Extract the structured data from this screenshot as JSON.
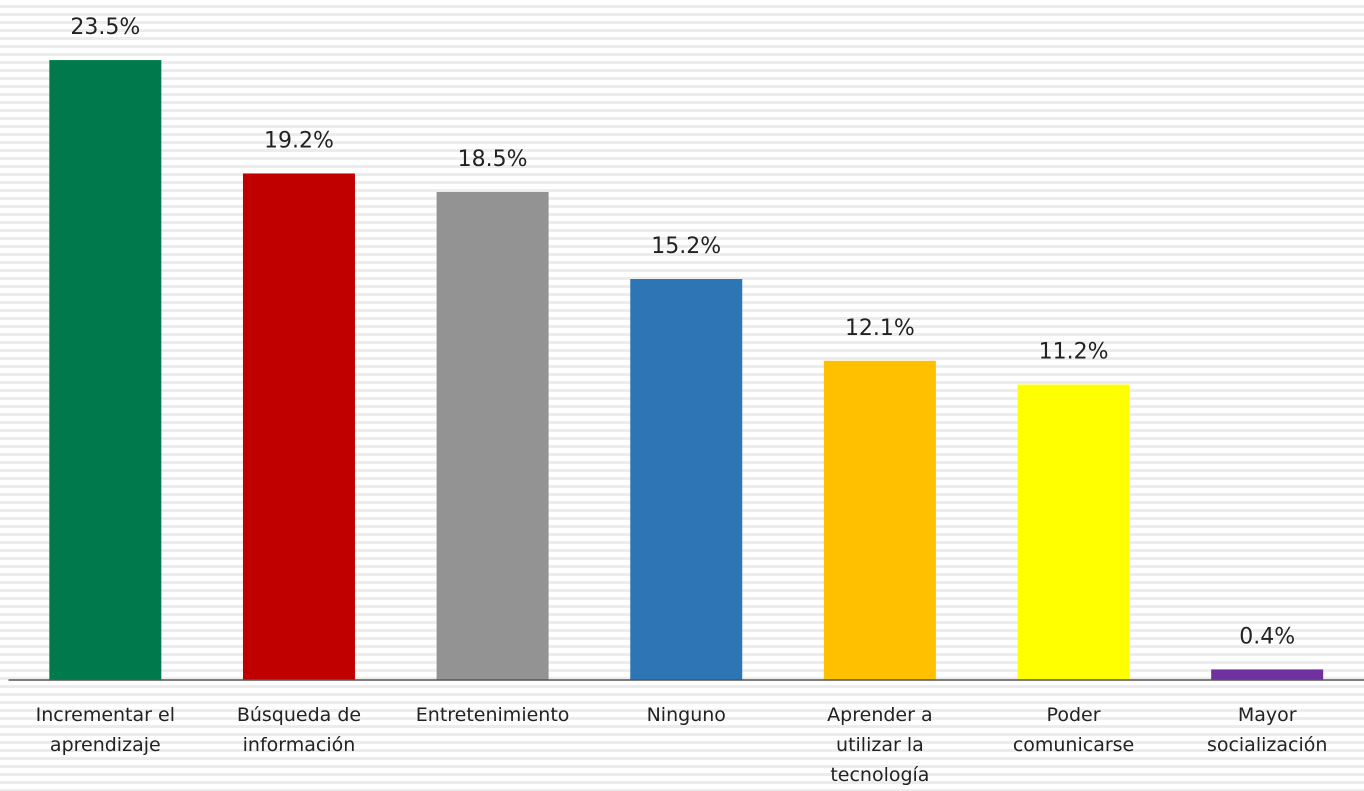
{
  "chart_data": {
    "type": "bar",
    "categories": [
      "Incrementar el aprendizaje",
      "Búsqueda de información",
      "Entretenimiento",
      "Ninguno",
      "Aprender a utilizar la tecnología",
      "Poder comunicarse",
      "Mayor socialización"
    ],
    "values": [
      23.5,
      19.2,
      18.5,
      15.2,
      12.1,
      11.2,
      0.4
    ],
    "value_labels": [
      "23.5%",
      "19.2%",
      "18.5%",
      "15.2%",
      "12.1%",
      "11.2%",
      "0.4%"
    ],
    "colors": [
      "#007a4d",
      "#c00000",
      "#939393",
      "#2e75b6",
      "#ffc000",
      "#ffff00",
      "#7030a0"
    ],
    "ylim": [
      0,
      25
    ]
  }
}
